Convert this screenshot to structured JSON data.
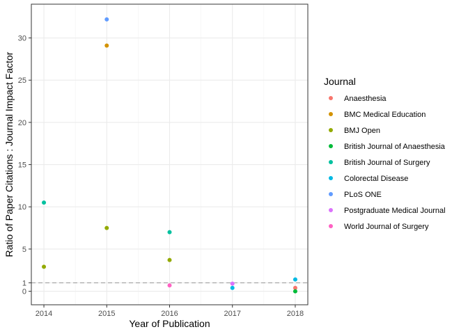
{
  "chart_data": {
    "type": "scatter",
    "xlabel": "Year of Publication",
    "ylabel": "Ratio of Paper Citations : Journal Impact Factor",
    "xlim": [
      2013.8,
      2018.2
    ],
    "ylim": [
      -1.6,
      34
    ],
    "x_ticks": [
      2014,
      2015,
      2016,
      2017,
      2018
    ],
    "y_ticks": [
      0,
      1,
      5,
      10,
      15,
      20,
      25,
      30
    ],
    "grid": true,
    "reference_line": {
      "y": 1,
      "style": "dashed",
      "color": "#999999"
    },
    "legend": {
      "title": "Journal",
      "position": "right"
    },
    "series": [
      {
        "name": "Anaesthesia",
        "color": "#F8766D",
        "points": [
          {
            "x": 2018,
            "y": 0.4
          }
        ]
      },
      {
        "name": "BMC Medical Education",
        "color": "#D39200",
        "points": [
          {
            "x": 2015,
            "y": 29.1
          }
        ]
      },
      {
        "name": "BMJ Open",
        "color": "#93AA00",
        "points": [
          {
            "x": 2014,
            "y": 2.9
          },
          {
            "x": 2015,
            "y": 7.5
          },
          {
            "x": 2016,
            "y": 3.7
          }
        ]
      },
      {
        "name": "British Journal of Anaesthesia",
        "color": "#00BA38",
        "points": [
          {
            "x": 2018,
            "y": 0.0
          }
        ]
      },
      {
        "name": "British Journal of Surgery",
        "color": "#00C19F",
        "points": [
          {
            "x": 2014,
            "y": 10.5
          },
          {
            "x": 2016,
            "y": 7.0
          }
        ]
      },
      {
        "name": "Colorectal Disease",
        "color": "#00B9E3",
        "points": [
          {
            "x": 2017,
            "y": 0.4
          },
          {
            "x": 2018,
            "y": 1.4
          }
        ]
      },
      {
        "name": "PLoS ONE",
        "color": "#619CFF",
        "points": [
          {
            "x": 2015,
            "y": 32.2
          }
        ]
      },
      {
        "name": "Postgraduate Medical Journal",
        "color": "#DB72FB",
        "points": [
          {
            "x": 2017,
            "y": 0.9
          }
        ]
      },
      {
        "name": "World Journal of Surgery",
        "color": "#FF61C3",
        "points": [
          {
            "x": 2016,
            "y": 0.7
          }
        ]
      }
    ]
  }
}
